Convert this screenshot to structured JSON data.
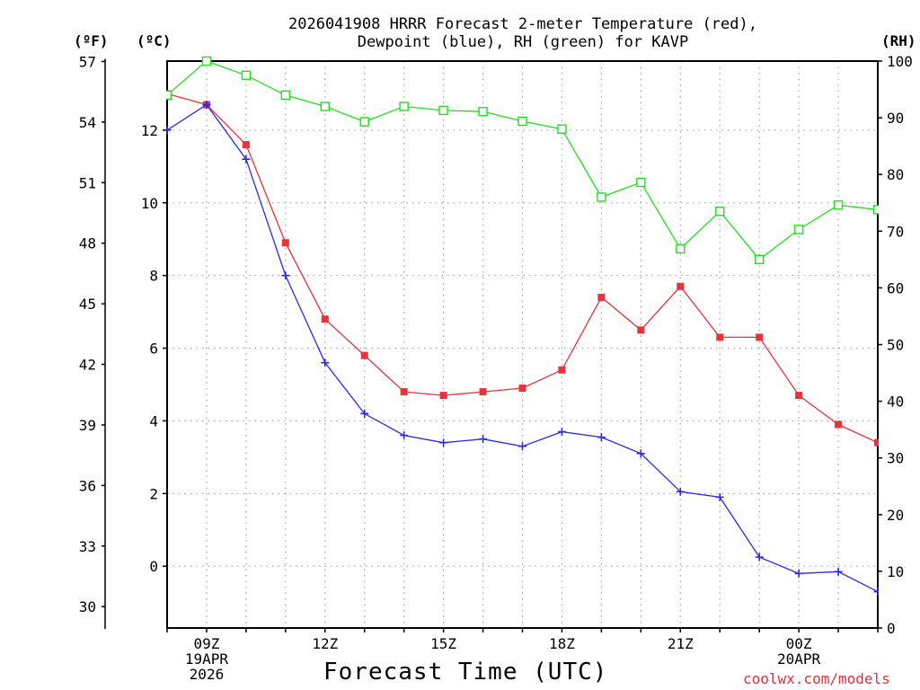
{
  "title": {
    "line1": "2026041908 HRRR Forecast 2-meter Temperature (red),",
    "line2": "Dewpoint (blue), RH (green) for KAVP"
  },
  "axis_units": {
    "fahrenheit": "(ºF)",
    "celsius": "(ºC)",
    "rh": "(RH)"
  },
  "xlabel": "Forecast Time (UTC)",
  "credit": "coolwx.com/models",
  "colors": {
    "temperature": "#e8323c",
    "dewpoint": "#2a2ae8",
    "rh": "#22dd22",
    "grid": "#a8a8a8",
    "credit": "#e0303c"
  },
  "chart_data": {
    "type": "line",
    "title": "2026041908 HRRR Forecast 2-meter Temperature (red), Dewpoint (blue), RH (green) for KAVP",
    "xlabel": "Forecast Time (UTC)",
    "x": [
      8,
      9,
      10,
      11,
      12,
      13,
      14,
      15,
      16,
      17,
      18,
      19,
      20,
      21,
      22,
      23,
      24,
      25,
      26
    ],
    "xlim": [
      8,
      26
    ],
    "xticks": [
      {
        "x": 9,
        "lines": [
          "09Z",
          "19APR",
          "2026"
        ]
      },
      {
        "x": 12,
        "lines": [
          "12Z"
        ]
      },
      {
        "x": 15,
        "lines": [
          "15Z"
        ]
      },
      {
        "x": 18,
        "lines": [
          "18Z"
        ]
      },
      {
        "x": 21,
        "lines": [
          "21Z"
        ]
      },
      {
        "x": 24,
        "lines": [
          "00Z",
          "20APR"
        ]
      }
    ],
    "celsius_axis": {
      "ylim": [
        -1.7,
        13.9
      ],
      "ticks": [
        0,
        2,
        4,
        6,
        8,
        10,
        12
      ]
    },
    "fahrenheit_axis": {
      "ticks": [
        30,
        33,
        36,
        39,
        42,
        45,
        48,
        51,
        54,
        57
      ]
    },
    "rh_axis": {
      "ylim": [
        0,
        100
      ],
      "ticks": [
        0,
        10,
        20,
        30,
        40,
        50,
        60,
        70,
        80,
        90,
        100
      ]
    },
    "series": [
      {
        "name": "Temperature",
        "axis": "celsius",
        "marker": "square-filled",
        "values": [
          13.0,
          12.7,
          11.6,
          8.9,
          6.8,
          5.8,
          4.8,
          4.7,
          4.8,
          4.9,
          5.4,
          7.4,
          6.5,
          7.7,
          6.3,
          6.3,
          4.7,
          3.9,
          3.4
        ]
      },
      {
        "name": "Dewpoint",
        "axis": "celsius",
        "marker": "plus",
        "values": [
          12.0,
          12.7,
          11.2,
          8.0,
          5.6,
          4.2,
          3.6,
          3.4,
          3.5,
          3.3,
          3.7,
          3.55,
          3.1,
          2.05,
          1.9,
          0.25,
          -0.2,
          -0.15,
          -0.7
        ]
      },
      {
        "name": "RH",
        "axis": "rh",
        "marker": "square-open",
        "values": [
          94,
          100,
          97.5,
          94,
          92,
          89.3,
          92,
          91.3,
          91.1,
          89.4,
          88,
          76,
          78.6,
          66.9,
          73.5,
          65,
          70.3,
          74.6,
          73.8
        ]
      }
    ]
  }
}
